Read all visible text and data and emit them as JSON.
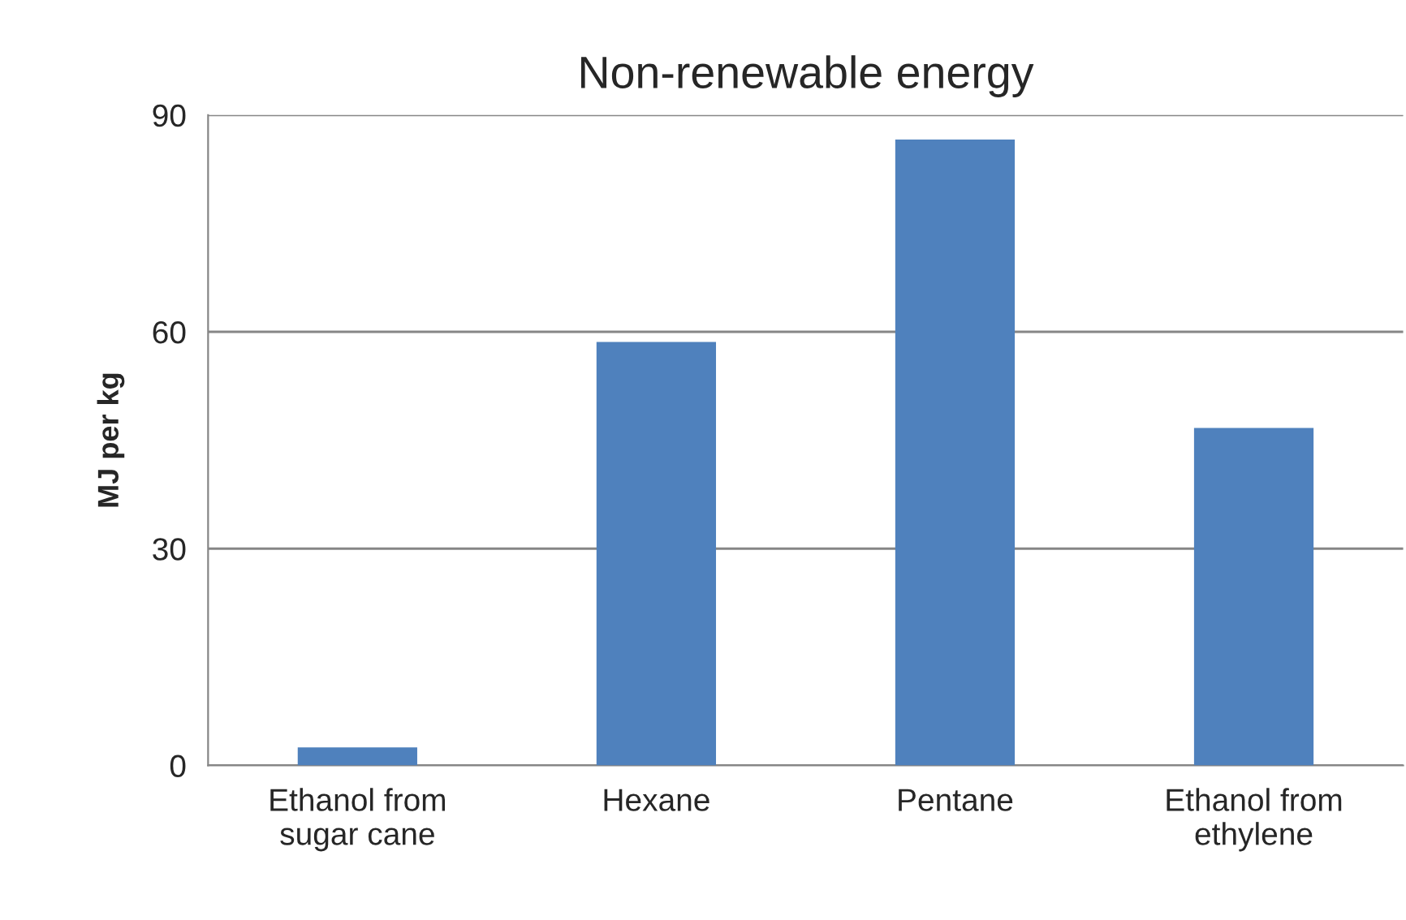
{
  "chart_data": {
    "type": "bar",
    "title": "Non-renewable energy",
    "ylabel": "MJ per kg",
    "categories": [
      "Ethanol from\nsugar cane",
      "Hexane",
      "Pentane",
      "Ethanol from\nethylene"
    ],
    "values": [
      2.5,
      58.6,
      86.6,
      46.7
    ],
    "color": "#4f81bd",
    "ylim": [
      0,
      90
    ],
    "yticks": [
      0,
      30,
      60,
      90
    ],
    "grid": "y"
  }
}
